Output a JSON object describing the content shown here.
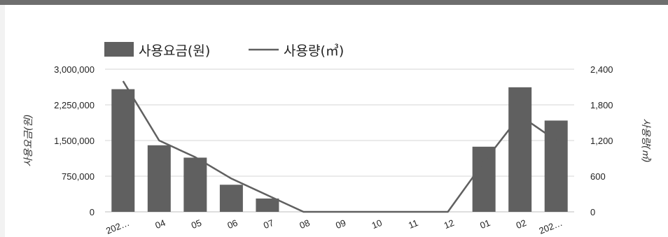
{
  "chart_data": {
    "type": "bar",
    "categories": [
      "202…",
      "04",
      "05",
      "06",
      "07",
      "08",
      "09",
      "10",
      "11",
      "12",
      "01",
      "02",
      "202…"
    ],
    "series": [
      {
        "name": "사용요금(원)",
        "type": "bar",
        "axis": "left",
        "color": "#606060",
        "values": [
          2580000,
          1400000,
          1140000,
          570000,
          280000,
          0,
          0,
          0,
          0,
          0,
          1370000,
          2620000,
          1920000
        ]
      },
      {
        "name": "사용량(㎥)",
        "type": "line",
        "axis": "right",
        "color": "#606060",
        "values": [
          2200,
          1200,
          920,
          560,
          280,
          0,
          0,
          0,
          0,
          0,
          840,
          1620,
          1200
        ]
      }
    ],
    "ylabel": "사용요금(원)",
    "y2label": "사용량(㎥)",
    "ylim": [
      0,
      3000000
    ],
    "y2lim": [
      0,
      2400
    ],
    "yticks": [
      "0",
      "750,000",
      "1,500,000",
      "2,250,000",
      "3,000,000"
    ],
    "y2ticks": [
      "0",
      "600",
      "1,200",
      "1,800",
      "2,400"
    ],
    "grid": true,
    "legend_position": "top-left"
  }
}
